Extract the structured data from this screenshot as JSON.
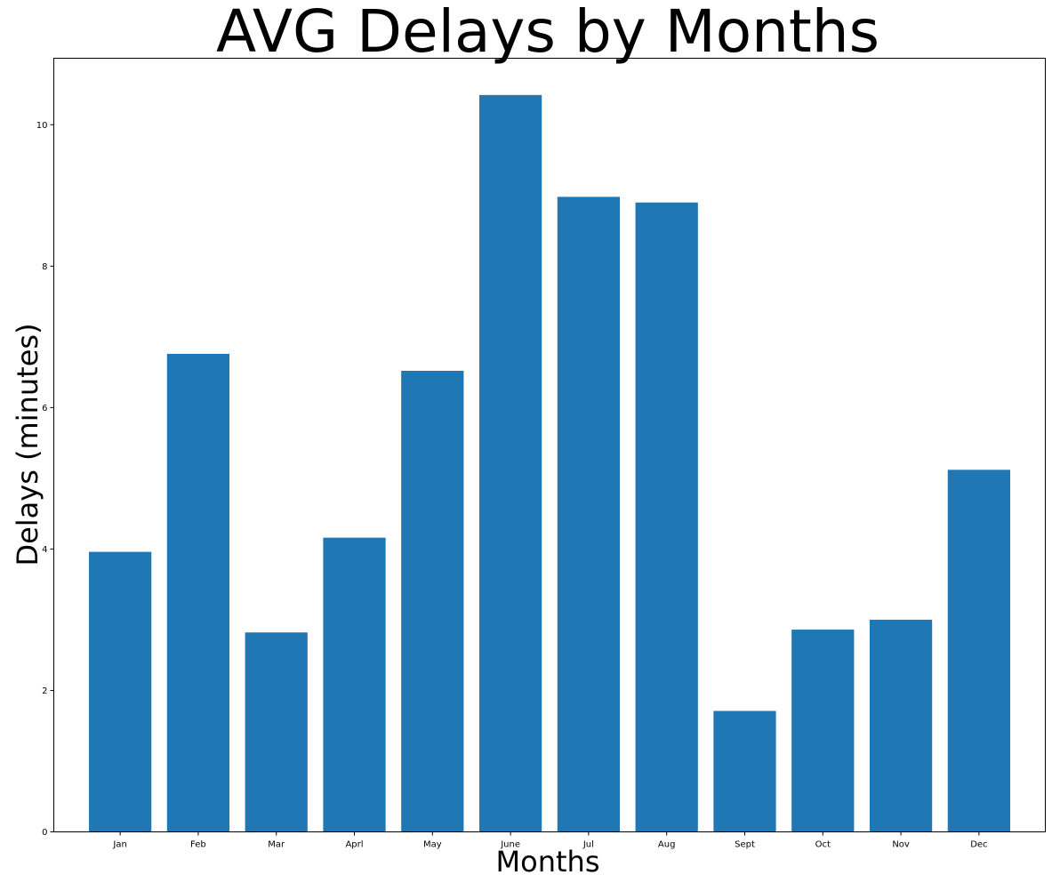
{
  "chart_data": {
    "type": "bar",
    "title": "AVG Delays by Months",
    "xlabel": "Months",
    "ylabel": "Delays (minutes)",
    "categories": [
      "Jan",
      "Feb",
      "Mar",
      "Aprl",
      "May",
      "June",
      "Jul",
      "Aug",
      "Sept",
      "Oct",
      "Nov",
      "Dec"
    ],
    "values": [
      3.96,
      6.76,
      2.82,
      4.16,
      6.52,
      10.42,
      8.98,
      8.9,
      1.71,
      2.86,
      3.0,
      5.12
    ],
    "ylim": [
      0,
      10.94
    ],
    "yticks": [
      0,
      2,
      4,
      6,
      8,
      10
    ],
    "bar_color": "#1f77b4",
    "grid": false,
    "legend": "none"
  }
}
